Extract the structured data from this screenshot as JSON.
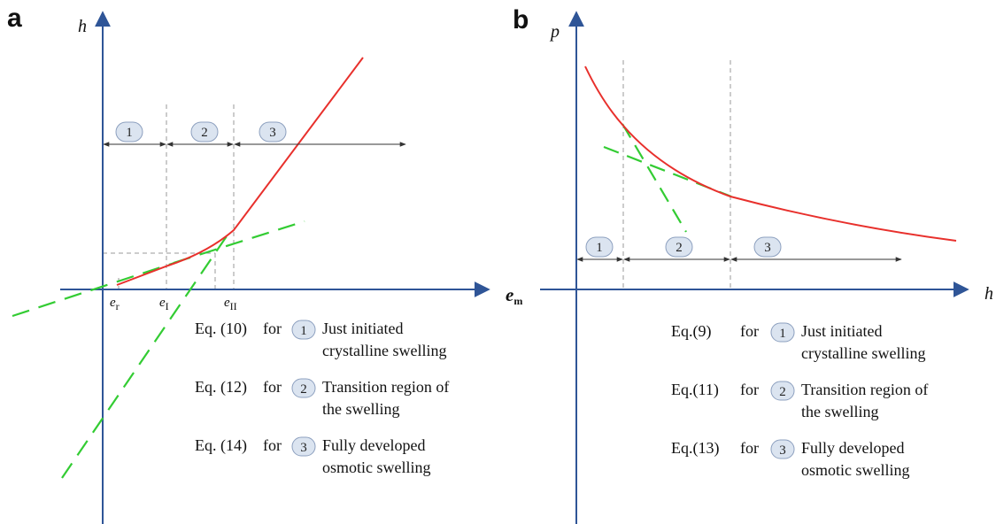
{
  "panel_a": {
    "letter": "a",
    "y_axis_label": "h",
    "x_axis_label": "e",
    "x_axis_label_sub": "m",
    "ticks": [
      {
        "main": "e",
        "sub": "r"
      },
      {
        "main": "e",
        "sub": "I"
      },
      {
        "main": "e",
        "sub": "II"
      }
    ],
    "regions": [
      "1",
      "2",
      "3"
    ],
    "legend": [
      {
        "eq": "Eq. (10)",
        "for": "for",
        "num": "1",
        "lines": [
          "Just initiated",
          "crystalline swelling"
        ]
      },
      {
        "eq": "Eq. (12)",
        "for": "for",
        "num": "2",
        "lines": [
          "Transition region of",
          "the swelling"
        ]
      },
      {
        "eq": "Eq. (14)",
        "for": "for",
        "num": "3",
        "lines": [
          "Fully developed",
          "osmotic swelling"
        ]
      }
    ]
  },
  "panel_b": {
    "letter": "b",
    "y_axis_label": "p",
    "x_axis_label": "h",
    "regions": [
      "1",
      "2",
      "3"
    ],
    "legend": [
      {
        "eq": "Eq.(9)",
        "for": "for",
        "num": "1",
        "lines": [
          "Just initiated",
          "crystalline swelling"
        ]
      },
      {
        "eq": "Eq.(11)",
        "for": "for",
        "num": "2",
        "lines": [
          "Transition region of",
          "the swelling"
        ]
      },
      {
        "eq": "Eq.(13)",
        "for": "for",
        "num": "3",
        "lines": [
          "Fully developed",
          "osmotic swelling"
        ]
      }
    ]
  },
  "colors": {
    "axis": "#2f5597",
    "curve": "#e8302c",
    "tangent": "#33cc33",
    "guide": "#9a9a9a",
    "arrow": "#333333",
    "circle_fill": "#dbe4f0",
    "circle_stroke": "#8da0bf"
  }
}
